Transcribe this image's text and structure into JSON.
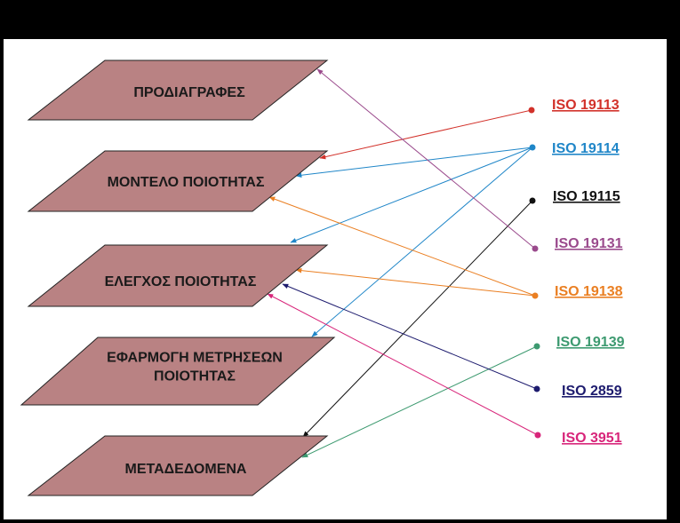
{
  "layers": [
    {
      "id": "specs",
      "lines": [
        "ΠΡΟΔΙΑΓΡΑΦΕΣ"
      ]
    },
    {
      "id": "model",
      "lines": [
        "ΜΟΝΤΕΛΟ ΠΟΙΟΤΗΤΑΣ"
      ]
    },
    {
      "id": "control",
      "lines": [
        "ΕΛΕΓΧΟΣ ΠΟΙΟΤΗΤΑΣ"
      ]
    },
    {
      "id": "apply",
      "lines": [
        "ΕΦΑΡΜΟΓΗ ΜΕΤΡΗΣΕΩΝ",
        "ΠΟΙΟΤΗΤΑΣ"
      ]
    },
    {
      "id": "meta",
      "lines": [
        "ΜΕΤΑΔΕΔΟΜΕΝΑ"
      ]
    }
  ],
  "standards": [
    {
      "id": "iso19113",
      "label": "ISO 19113",
      "color": "#d2312a"
    },
    {
      "id": "iso19114",
      "label": "ISO 19114",
      "color": "#1f86c8"
    },
    {
      "id": "iso19115",
      "label": "ISO 19115",
      "color": "#111111"
    },
    {
      "id": "iso19131",
      "label": "ISO 19131",
      "color": "#9a4a8c"
    },
    {
      "id": "iso19138",
      "label": "ISO 19138",
      "color": "#ea7f22"
    },
    {
      "id": "iso19139",
      "label": "ISO 19139",
      "color": "#3d9a70"
    },
    {
      "id": "iso2859",
      "label": "ISO 2859",
      "color": "#1d1b6e"
    },
    {
      "id": "iso3951",
      "label": "ISO 3951",
      "color": "#d8257a"
    }
  ],
  "links": [
    {
      "from": "iso19113",
      "to": "model"
    },
    {
      "from": "iso19114",
      "to": "model"
    },
    {
      "from": "iso19114",
      "to": "control"
    },
    {
      "from": "iso19114",
      "to": "apply"
    },
    {
      "from": "iso19115",
      "to": "meta"
    },
    {
      "from": "iso19131",
      "to": "specs"
    },
    {
      "from": "iso19138",
      "to": "model"
    },
    {
      "from": "iso19138",
      "to": "control"
    },
    {
      "from": "iso19139",
      "to": "meta"
    },
    {
      "from": "iso2859",
      "to": "control"
    },
    {
      "from": "iso3951",
      "to": "control"
    }
  ]
}
